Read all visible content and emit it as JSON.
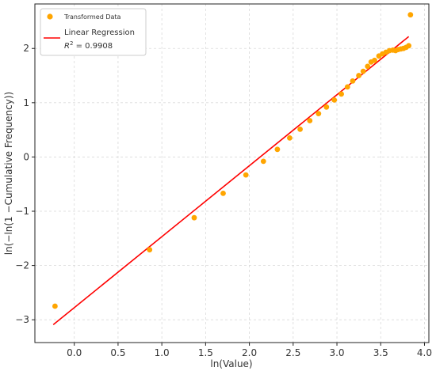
{
  "chart_data": {
    "type": "scatter",
    "xlabel": "ln(Value)",
    "ylabel": "ln(−ln(1 −Cumulative Frequency))",
    "xlim": [
      -0.45,
      4.05
    ],
    "ylim": [
      -3.42,
      2.82
    ],
    "xticks": [
      0.0,
      0.5,
      1.0,
      1.5,
      2.0,
      2.5,
      3.0,
      3.5,
      4.0
    ],
    "xtick_labels": [
      "0.0",
      "0.5",
      "1.0",
      "1.5",
      "2.0",
      "2.5",
      "3.0",
      "3.5",
      "4.0"
    ],
    "yticks": [
      -3,
      -2,
      -1,
      0,
      1,
      2
    ],
    "ytick_labels": [
      "−3",
      "−2",
      "−1",
      "0",
      "1",
      "2"
    ],
    "grid": true,
    "legend_position": "top-left",
    "series": [
      {
        "name": "Transformed Data",
        "kind": "scatter",
        "color": "#FFA500",
        "points": [
          [
            -0.22,
            -2.75
          ],
          [
            0.86,
            -1.71
          ],
          [
            1.37,
            -1.12
          ],
          [
            1.7,
            -0.67
          ],
          [
            1.96,
            -0.33
          ],
          [
            2.16,
            -0.08
          ],
          [
            2.32,
            0.14
          ],
          [
            2.46,
            0.35
          ],
          [
            2.58,
            0.51
          ],
          [
            2.69,
            0.67
          ],
          [
            2.79,
            0.8
          ],
          [
            2.88,
            0.92
          ],
          [
            2.97,
            1.05
          ],
          [
            3.05,
            1.16
          ],
          [
            3.12,
            1.29
          ],
          [
            3.18,
            1.4
          ],
          [
            3.25,
            1.5
          ],
          [
            3.3,
            1.58
          ],
          [
            3.35,
            1.67
          ],
          [
            3.39,
            1.75
          ],
          [
            3.43,
            1.78
          ],
          [
            3.48,
            1.86
          ],
          [
            3.52,
            1.9
          ],
          [
            3.56,
            1.93
          ],
          [
            3.6,
            1.96
          ],
          [
            3.64,
            1.97
          ],
          [
            3.67,
            1.96
          ],
          [
            3.7,
            1.98
          ],
          [
            3.73,
            1.99
          ],
          [
            3.76,
            2.0
          ],
          [
            3.79,
            2.02
          ],
          [
            3.82,
            2.05
          ],
          [
            3.84,
            2.62
          ]
        ]
      },
      {
        "name": "Linear Regression",
        "kind": "line",
        "color": "#FF0000",
        "points": [
          [
            -0.24,
            -3.09
          ],
          [
            3.82,
            2.22
          ]
        ]
      }
    ],
    "annotation": {
      "prefix": "R",
      "superscript": "2",
      "value": " = 0.9908"
    }
  }
}
